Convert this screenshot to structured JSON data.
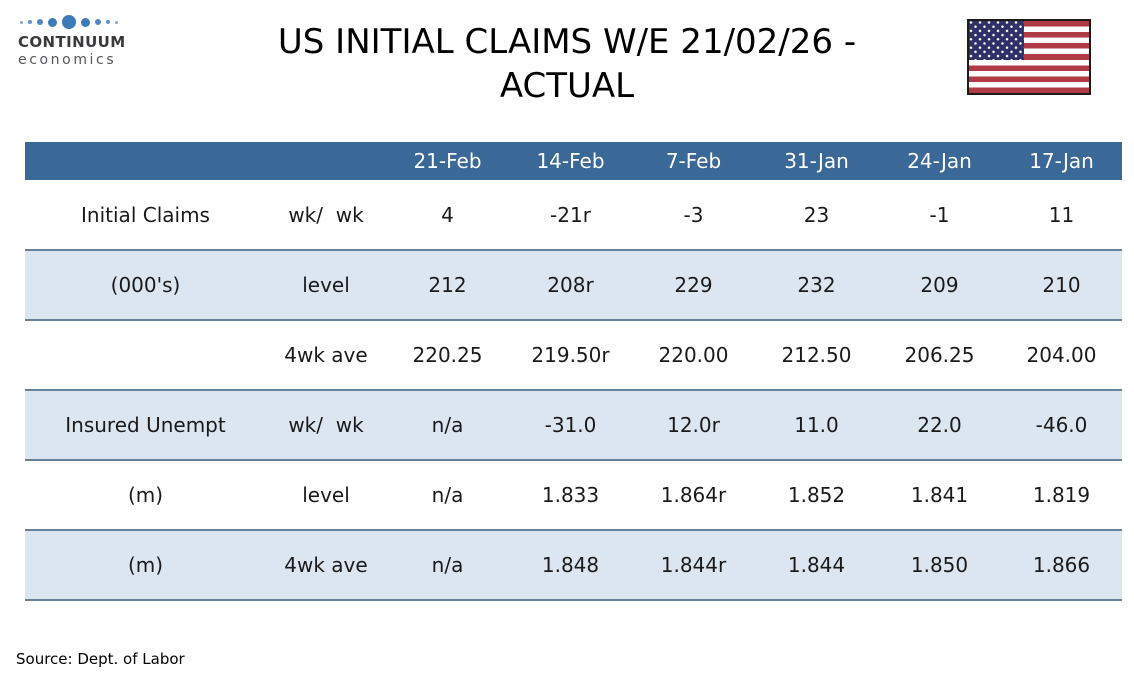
{
  "header": {
    "logo": {
      "brand": "CONTINUUM",
      "sub": "economics",
      "icon": "dots-wave-icon"
    },
    "title_line1": "US INITIAL CLAIMS W/E 21/02/26 -",
    "title_line2": "ACTUAL",
    "flag_icon": "us-flag-icon"
  },
  "chart_data": {
    "type": "table",
    "title": "US INITIAL CLAIMS W/E 21/02/26 - ACTUAL",
    "columns": [
      "",
      "",
      "21-Feb",
      "14-Feb",
      "7-Feb",
      "31-Jan",
      "24-Jan",
      "17-Jan"
    ],
    "rows": [
      {
        "label": "Initial Claims",
        "measure": "wk/  wk",
        "values": [
          "4",
          "-21r",
          "-3",
          "23",
          "-1",
          "11"
        ],
        "shaded": false
      },
      {
        "label": "(000's)",
        "measure": "level",
        "values": [
          "212",
          "208r",
          "229",
          "232",
          "209",
          "210"
        ],
        "shaded": true
      },
      {
        "label": "",
        "measure": "4wk ave",
        "values": [
          "220.25",
          "219.50r",
          "220.00",
          "212.50",
          "206.25",
          "204.00"
        ],
        "shaded": false
      },
      {
        "label": "Insured Unempt",
        "measure": "wk/  wk",
        "values": [
          "n/a",
          "-31.0",
          "12.0r",
          "11.0",
          "22.0",
          "-46.0"
        ],
        "shaded": true
      },
      {
        "label": "(m)",
        "measure": "level",
        "values": [
          "n/a",
          "1.833",
          "1.864r",
          "1.852",
          "1.841",
          "1.819"
        ],
        "shaded": false
      },
      {
        "label": "(m)",
        "measure": "4wk ave",
        "values": [
          "n/a",
          "1.848",
          "1.844r",
          "1.844",
          "1.850",
          "1.866"
        ],
        "shaded": true
      }
    ],
    "source": "Source: Dept. of Labor",
    "layout": {
      "header_bg": "#3A6897",
      "band_bg": "#DCE6F1",
      "band_border": "#67809B",
      "grid": "banded-rows"
    }
  },
  "footer": {
    "source": "Source: Dept. of Labor"
  },
  "colors": {
    "header_bg": "#3A6897",
    "band_bg": "#DCE6F1",
    "band_border": "#67809B",
    "logo_dot": "#3D7AB8",
    "flag_red": "#B13B45",
    "flag_navy": "#2E3168",
    "text": "#1A1A1A"
  }
}
